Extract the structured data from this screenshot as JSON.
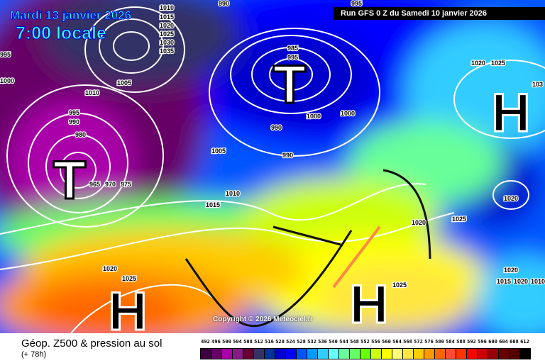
{
  "header": {
    "date": "Mardi 13 janvier 2026",
    "local_time": "7:00 locale",
    "run": "Run GFS 0 Z du Samedi 10 janvier 2026"
  },
  "copyright": "Copyright © 2026 Meteociel.fr",
  "footer": {
    "title": "Géop. Z500 & pression au sol",
    "lead": "(+ 78h)"
  },
  "legend": {
    "labels": [
      "492",
      "496",
      "500",
      "504",
      "508",
      "512",
      "516",
      "520",
      "524",
      "528",
      "532",
      "536",
      "540",
      "544",
      "548",
      "552",
      "556",
      "560",
      "564",
      "568",
      "572",
      "576",
      "580",
      "584",
      "588",
      "592",
      "596",
      "600",
      "604",
      "608",
      "612"
    ],
    "colors": [
      "#3c0040",
      "#660066",
      "#aa00aa",
      "#881a88",
      "#660033",
      "#333366",
      "#003399",
      "#0000cc",
      "#0000ff",
      "#0055ff",
      "#0099ff",
      "#33ccff",
      "#66ffff",
      "#66ff99",
      "#66ff66",
      "#66ff00",
      "#ccff11",
      "#ffff00",
      "#ffff77",
      "#ffe640",
      "#ffcc00",
      "#ff9900",
      "#ff6600",
      "#ff4d33",
      "#ff3300",
      "#ff0000",
      "#cc0000",
      "#990000",
      "#660000",
      "#550000",
      "#000000"
    ]
  },
  "pressure_centers": [
    {
      "type": "T",
      "label": "T"
    },
    {
      "type": "T",
      "label": "T"
    },
    {
      "type": "H",
      "label": "H"
    },
    {
      "type": "H",
      "label": "H"
    },
    {
      "type": "H",
      "label": "H"
    }
  ],
  "isobar_labels": [
    "995",
    "1010",
    "1015",
    "1020",
    "1025",
    "1030",
    "1035",
    "1000",
    "1010",
    "995",
    "990",
    "980",
    "965",
    "970",
    "975",
    "1005",
    "990",
    "985",
    "995",
    "1000",
    "990",
    "990",
    "1005",
    "1010",
    "1015",
    "1020",
    "1025",
    "1000",
    "995",
    "1020",
    "1025",
    "103",
    "1020",
    "1020",
    "1025",
    "1020",
    "1015",
    "1020",
    "1025",
    "1010"
  ]
}
